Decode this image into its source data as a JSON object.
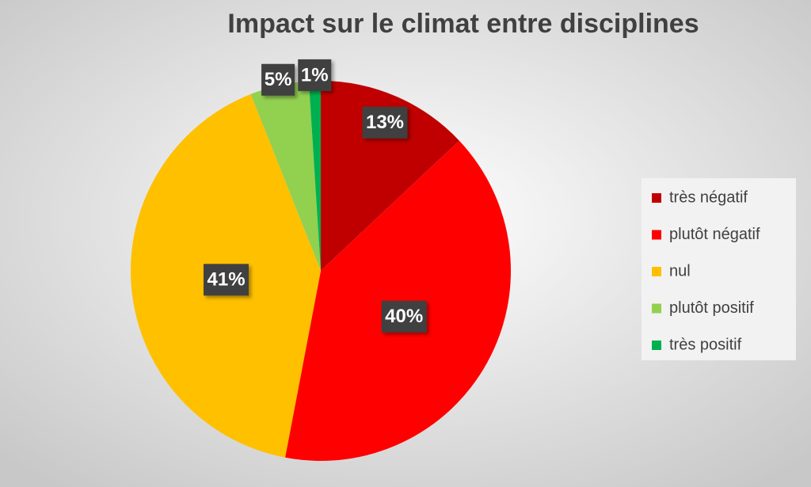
{
  "chart_data": {
    "type": "pie",
    "title": "Impact sur le climat entre disciplines",
    "categories": [
      "très négatif",
      "plutôt négatif",
      "nul",
      "plutôt positif",
      "très positif"
    ],
    "values": [
      13,
      40,
      41,
      5,
      1
    ],
    "value_labels": [
      "13%",
      "40%",
      "41%",
      "5%",
      "1%"
    ],
    "colors": [
      "#c00000",
      "#ff0000",
      "#ffc000",
      "#92d050",
      "#00b050"
    ],
    "legend": "right"
  }
}
